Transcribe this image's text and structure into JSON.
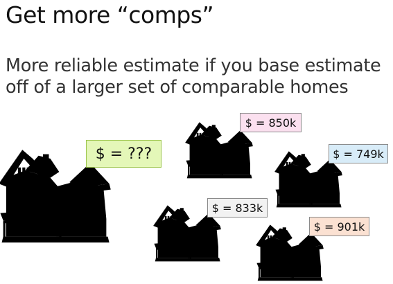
{
  "slide": {
    "title": "Get more “comps”",
    "subtitle": "More reliable estimate if you base estimate off of a larger set of comparable homes"
  },
  "price_tags": {
    "target": "$ = ???",
    "comp_pink": "$ = 850k",
    "comp_blue": "$ = 749k",
    "comp_gray": "$ = 833k",
    "comp_orange": "$ = 901k"
  },
  "houses": [
    {
      "name": "target-house-icon",
      "color": "#9fbf1c"
    },
    {
      "name": "pink-comp-house-icon",
      "color": "#d2529c"
    },
    {
      "name": "blue-comp-house-icon",
      "color": "#3f8fd0"
    },
    {
      "name": "gray-comp-house-icon",
      "color": "#707070"
    },
    {
      "name": "orange-comp-house-icon",
      "color": "#e8683f"
    }
  ]
}
